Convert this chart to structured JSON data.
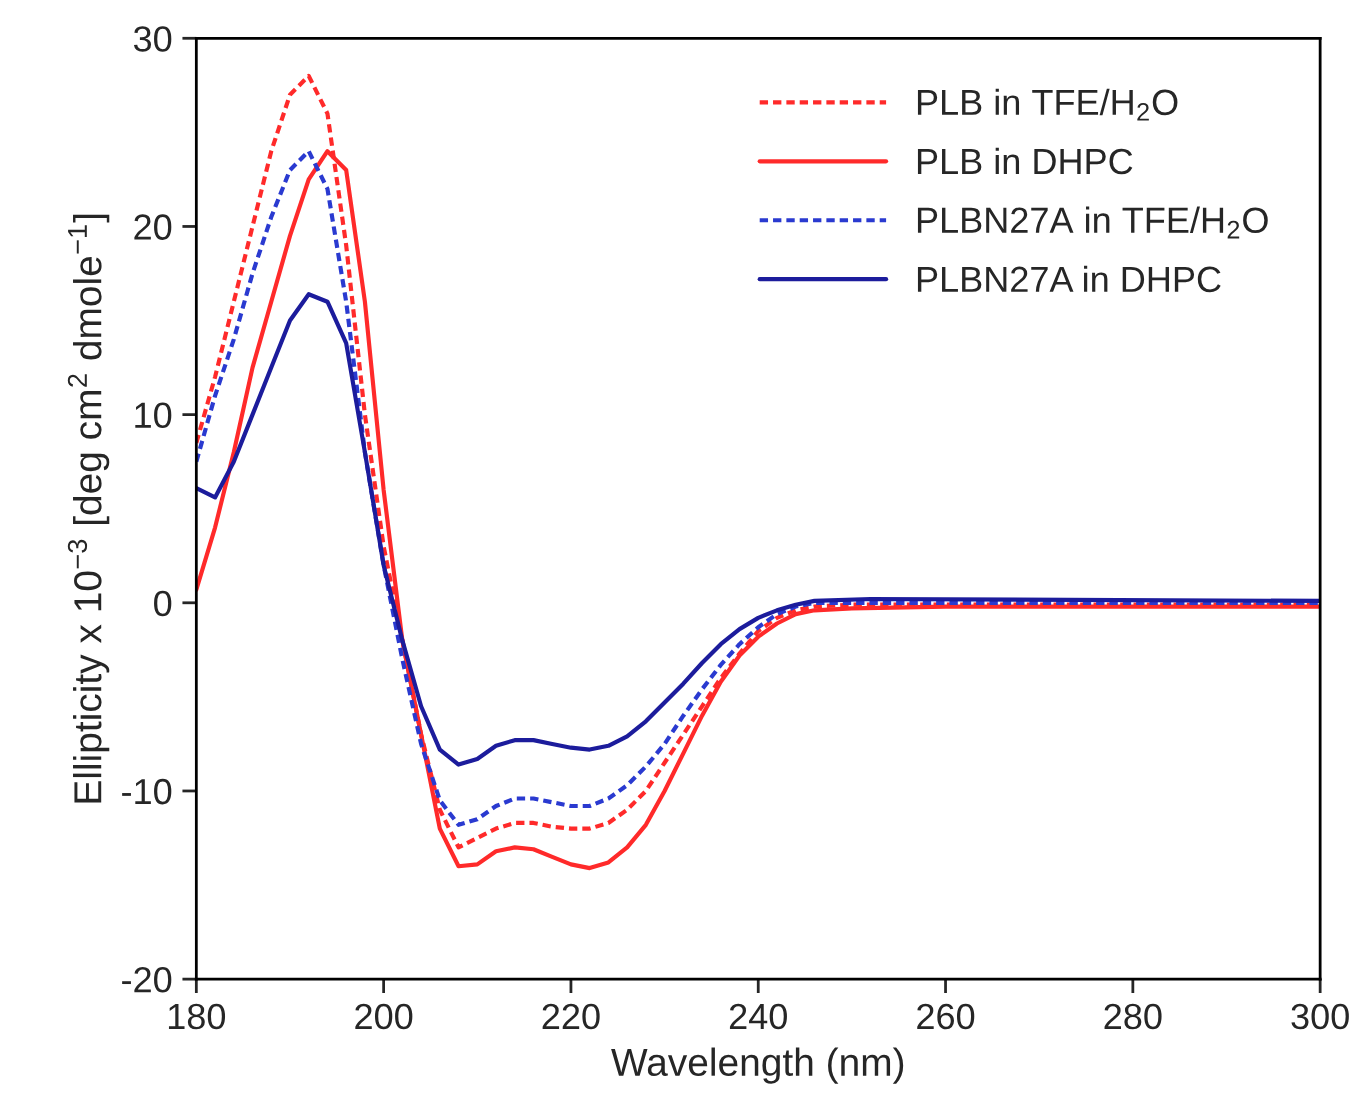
{
  "chart_data": {
    "type": "line",
    "xlabel": "Wavelength (nm)",
    "ylabel": "Ellipticity x 10$^{−3}$ [deg cm$^{2}$ dmole$^{−1}$]",
    "xlim": [
      180,
      300
    ],
    "xticks": [
      180,
      200,
      220,
      240,
      260,
      280,
      300
    ],
    "ylim": [
      -20,
      30
    ],
    "yticks": [
      -20,
      -10,
      0,
      10,
      20,
      30
    ],
    "grid": false,
    "legend": "top right",
    "marker": "none",
    "series": [
      {
        "name": "PLB in TFE/H$_{2}$O",
        "color": "#ff2a2a",
        "line_style": "dotted",
        "x": [
          180,
          182,
          184,
          186,
          188,
          190,
          192,
          194,
          196,
          198,
          200,
          202,
          204,
          206,
          208,
          210,
          212,
          214,
          216,
          218,
          220,
          222,
          224,
          226,
          228,
          230,
          232,
          234,
          236,
          238,
          240,
          242,
          244,
          246,
          250,
          300
        ],
        "values": [
          8.5,
          12,
          16,
          20,
          24,
          27,
          28,
          26,
          19,
          10,
          3,
          -2,
          -7,
          -11,
          -13,
          -12.5,
          -12,
          -11.7,
          -11.7,
          -11.9,
          -12,
          -12,
          -11.7,
          -11,
          -10,
          -8.5,
          -7,
          -5.5,
          -4,
          -2.7,
          -1.5,
          -0.8,
          -0.4,
          -0.2,
          -0.1,
          -0.1
        ]
      },
      {
        "name": "PLB in DHPC",
        "color": "#ff2a2a",
        "line_style": "solid",
        "x": [
          180,
          182,
          184,
          186,
          188,
          190,
          192,
          194,
          196,
          198,
          200,
          202,
          204,
          206,
          208,
          210,
          212,
          214,
          216,
          218,
          220,
          222,
          224,
          226,
          228,
          230,
          232,
          234,
          236,
          238,
          240,
          242,
          244,
          246,
          250,
          260,
          300
        ],
        "values": [
          0.7,
          4,
          8,
          12.5,
          16,
          19.5,
          22.5,
          24,
          23,
          16,
          6,
          -2,
          -7,
          -12,
          -14,
          -13.9,
          -13.2,
          -13,
          -13.1,
          -13.5,
          -13.9,
          -14.1,
          -13.8,
          -13,
          -11.8,
          -10,
          -8,
          -6,
          -4.2,
          -2.8,
          -1.8,
          -1.1,
          -0.6,
          -0.4,
          -0.3,
          -0.2,
          -0.2
        ]
      },
      {
        "name": "PLBN27A in TFE/H$_{2}$O",
        "color": "#2a3ad0",
        "line_style": "dotted",
        "x": [
          180,
          182,
          184,
          186,
          188,
          190,
          192,
          194,
          196,
          198,
          200,
          202,
          204,
          206,
          208,
          210,
          212,
          214,
          216,
          218,
          220,
          222,
          224,
          226,
          228,
          230,
          232,
          234,
          236,
          238,
          240,
          242,
          244,
          246,
          300
        ],
        "values": [
          7.5,
          11,
          14,
          17.5,
          20.5,
          23,
          24,
          22,
          16,
          8,
          2,
          -3,
          -7.5,
          -10.5,
          -11.8,
          -11.5,
          -10.8,
          -10.4,
          -10.4,
          -10.6,
          -10.8,
          -10.8,
          -10.4,
          -9.7,
          -8.7,
          -7.5,
          -6,
          -4.6,
          -3.3,
          -2.2,
          -1.3,
          -0.6,
          -0.2,
          0,
          0
        ]
      },
      {
        "name": "PLBN27A in DHPC",
        "color": "#1c1c9c",
        "line_style": "solid",
        "x": [
          180,
          182,
          184,
          186,
          188,
          190,
          192,
          194,
          196,
          198,
          200,
          202,
          204,
          206,
          208,
          210,
          212,
          214,
          216,
          218,
          220,
          222,
          224,
          226,
          228,
          230,
          232,
          234,
          236,
          238,
          240,
          242,
          244,
          246,
          252,
          300
        ],
        "values": [
          6.1,
          5.6,
          7.5,
          10,
          12.5,
          15,
          16.4,
          16,
          13.8,
          8,
          2,
          -2,
          -5.5,
          -7.8,
          -8.6,
          -8.3,
          -7.6,
          -7.3,
          -7.3,
          -7.5,
          -7.7,
          -7.8,
          -7.6,
          -7.1,
          -6.3,
          -5.3,
          -4.3,
          -3.2,
          -2.2,
          -1.4,
          -0.8,
          -0.4,
          -0.1,
          0.1,
          0.2,
          0.1
        ]
      }
    ]
  }
}
